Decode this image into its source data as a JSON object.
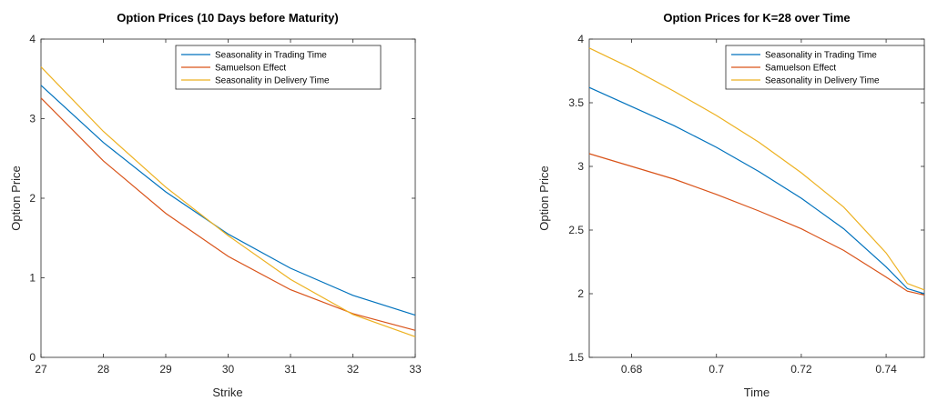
{
  "chart_data": [
    {
      "type": "line",
      "title": "Option Prices (10 Days before Maturity)",
      "xlabel": "Strike",
      "ylabel": "Option Price",
      "xlim": [
        27,
        33
      ],
      "ylim": [
        0,
        4
      ],
      "xticks": [
        "27",
        "28",
        "29",
        "30",
        "31",
        "32",
        "33"
      ],
      "yticks": [
        "0",
        "1",
        "2",
        "3",
        "4"
      ],
      "legend_position": "top-right",
      "x": [
        27,
        28,
        29,
        30,
        31,
        32,
        33
      ],
      "series": [
        {
          "name": "Seasonality in Trading Time",
          "color": "#0072BD",
          "values": [
            3.42,
            2.7,
            2.08,
            1.55,
            1.12,
            0.78,
            0.53
          ]
        },
        {
          "name": "Samuelson Effect",
          "color": "#D95319",
          "values": [
            3.26,
            2.47,
            1.81,
            1.27,
            0.85,
            0.55,
            0.34
          ]
        },
        {
          "name": "Seasonality in Delivery Time",
          "color": "#EDB120",
          "values": [
            3.65,
            2.84,
            2.14,
            1.53,
            0.98,
            0.54,
            0.26
          ]
        }
      ]
    },
    {
      "type": "line",
      "title": "Option Prices for K=28 over Time",
      "xlabel": "Time",
      "ylabel": "Option Price",
      "xlim": [
        0.67,
        0.749
      ],
      "ylim": [
        1.5,
        4
      ],
      "xticks": [
        "0.68",
        "0.7",
        "0.72",
        "0.74"
      ],
      "yticks": [
        "1.5",
        "2",
        "2.5",
        "3",
        "3.5",
        "4"
      ],
      "legend_position": "top-right",
      "x": [
        0.67,
        0.68,
        0.69,
        0.7,
        0.71,
        0.72,
        0.73,
        0.74,
        0.745,
        0.749
      ],
      "series": [
        {
          "name": "Seasonality in Trading Time",
          "color": "#0072BD",
          "values": [
            3.62,
            3.47,
            3.32,
            3.15,
            2.96,
            2.75,
            2.51,
            2.21,
            2.04,
            2.0
          ]
        },
        {
          "name": "Samuelson Effect",
          "color": "#D95319",
          "values": [
            3.1,
            3.0,
            2.9,
            2.78,
            2.65,
            2.51,
            2.34,
            2.13,
            2.02,
            1.99
          ]
        },
        {
          "name": "Seasonality in Delivery Time",
          "color": "#EDB120",
          "values": [
            3.93,
            3.77,
            3.59,
            3.4,
            3.19,
            2.95,
            2.68,
            2.32,
            2.08,
            2.03
          ]
        }
      ]
    }
  ]
}
